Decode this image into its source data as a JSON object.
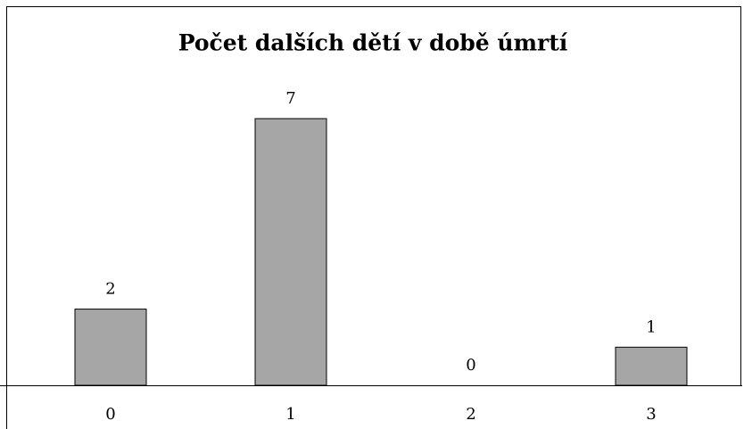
{
  "chart_data": {
    "type": "bar",
    "title": "Počet dalších dětí v době úmrtí",
    "categories": [
      "0",
      "1",
      "2",
      "3"
    ],
    "values": [
      2,
      7,
      0,
      1
    ],
    "color": "#a6a6a6"
  }
}
